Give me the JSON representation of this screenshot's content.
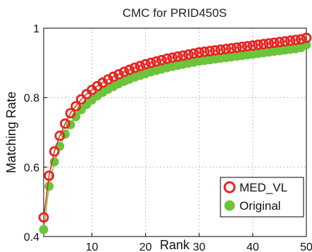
{
  "chart_data": {
    "type": "line",
    "title": "CMC for PRID450S",
    "xlabel": "Rank",
    "ylabel": "Matching Rate",
    "xlim": [
      1,
      50
    ],
    "ylim": [
      0.4,
      1.0
    ],
    "x_ticks": [
      10,
      20,
      30,
      40,
      50
    ],
    "x_tick_labels": [
      "10",
      "20",
      "30",
      "40",
      "50"
    ],
    "y_ticks": [
      0.4,
      0.6,
      0.8,
      1.0
    ],
    "y_tick_labels": [
      "0.4",
      "0.6",
      "0.8",
      "1"
    ],
    "grid": true,
    "legend_position": "bottom-right",
    "x": [
      1,
      2,
      3,
      4,
      5,
      6,
      7,
      8,
      9,
      10,
      11,
      12,
      13,
      14,
      15,
      16,
      17,
      18,
      19,
      20,
      21,
      22,
      23,
      24,
      25,
      26,
      27,
      28,
      29,
      30,
      31,
      32,
      33,
      34,
      35,
      36,
      37,
      38,
      39,
      40,
      41,
      42,
      43,
      44,
      45,
      46,
      47,
      48,
      49,
      50
    ],
    "series": [
      {
        "name": "MED_VL",
        "color": "#e8231f",
        "marker": "hollow-circle",
        "values": [
          0.455,
          0.575,
          0.645,
          0.69,
          0.725,
          0.755,
          0.775,
          0.795,
          0.81,
          0.822,
          0.833,
          0.843,
          0.852,
          0.86,
          0.867,
          0.874,
          0.88,
          0.886,
          0.891,
          0.896,
          0.9,
          0.904,
          0.908,
          0.912,
          0.915,
          0.918,
          0.921,
          0.924,
          0.927,
          0.93,
          0.932,
          0.934,
          0.936,
          0.938,
          0.94,
          0.942,
          0.944,
          0.946,
          0.948,
          0.95,
          0.952,
          0.954,
          0.956,
          0.958,
          0.96,
          0.962,
          0.964,
          0.966,
          0.968,
          0.972
        ]
      },
      {
        "name": "Original",
        "color": "#6cc43a",
        "marker": "filled-circle",
        "values": [
          0.42,
          0.545,
          0.615,
          0.66,
          0.695,
          0.722,
          0.745,
          0.765,
          0.78,
          0.793,
          0.805,
          0.815,
          0.824,
          0.832,
          0.84,
          0.847,
          0.853,
          0.859,
          0.864,
          0.869,
          0.874,
          0.878,
          0.882,
          0.886,
          0.89,
          0.893,
          0.896,
          0.899,
          0.902,
          0.905,
          0.907,
          0.909,
          0.911,
          0.913,
          0.915,
          0.917,
          0.919,
          0.921,
          0.923,
          0.925,
          0.927,
          0.929,
          0.931,
          0.933,
          0.935,
          0.937,
          0.939,
          0.941,
          0.944,
          0.952
        ]
      }
    ]
  }
}
